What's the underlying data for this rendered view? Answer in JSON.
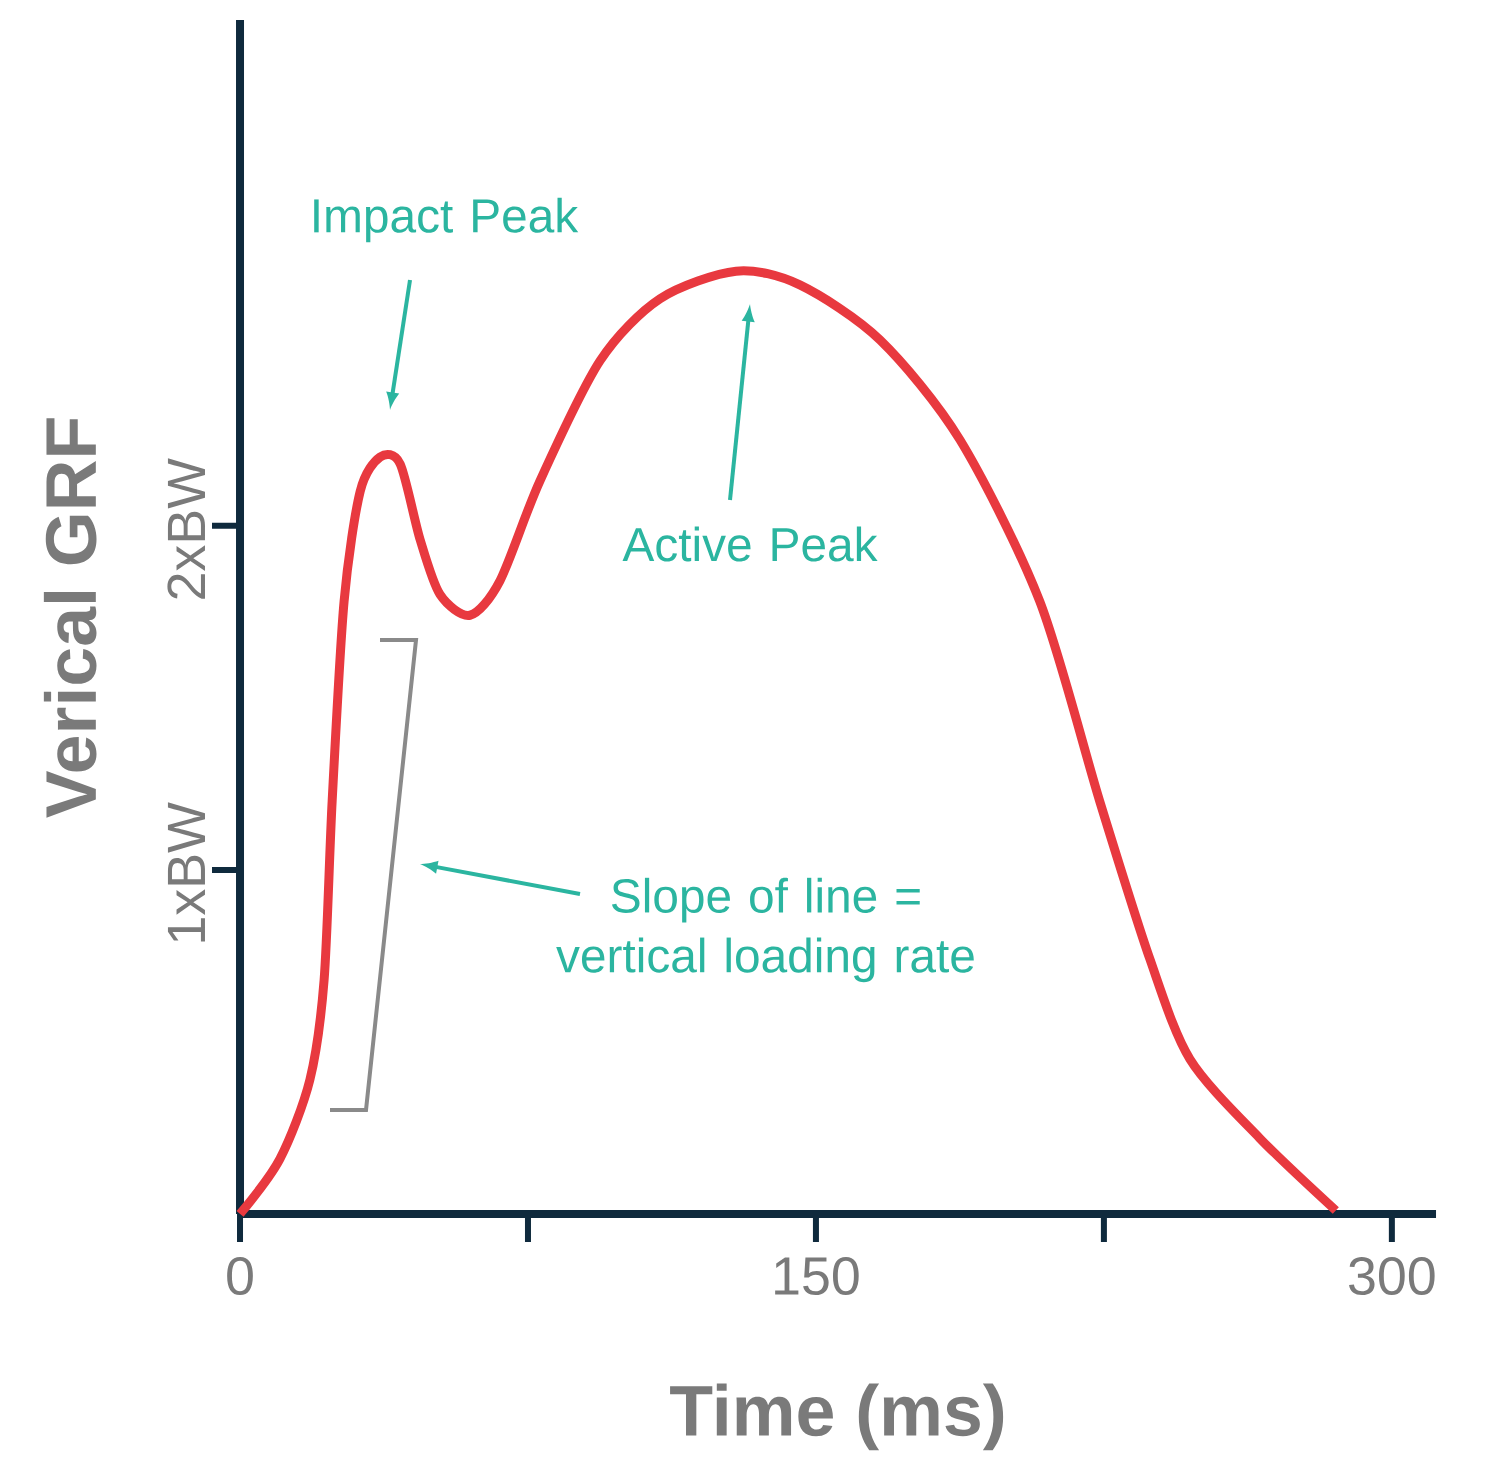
{
  "chart_data": {
    "type": "line",
    "xlabel": "Time (ms)",
    "ylabel": "Verical GRF",
    "x": [
      0,
      10.4,
      18.2,
      21.9,
      24,
      27.1,
      31.3,
      36.5,
      41.7,
      46.9,
      52.1,
      59.9,
      67.7,
      78.1,
      93.8,
      109.4,
      129.2,
      145.8,
      166.7,
      187.5,
      208.3,
      223.9,
      237,
      247.4,
      265.6,
      285.4
    ],
    "series": [
      {
        "color": "#e8393f",
        "values": [
          0,
          0.16,
          0.39,
          0.68,
          1.2,
          1.78,
          2.1,
          2.2,
          2.18,
          1.96,
          1.8,
          1.74,
          1.84,
          2.13,
          2.48,
          2.66,
          2.74,
          2.7,
          2.54,
          2.25,
          1.78,
          1.2,
          0.74,
          0.45,
          0.22,
          0.01
        ]
      }
    ],
    "xlim": [
      0,
      311.5
    ],
    "ylim": [
      0,
      3.47
    ],
    "xticks": [
      0,
      {
        "value": 75,
        "label": null
      },
      150,
      {
        "value": 225,
        "label": null
      },
      300
    ],
    "yticks": [
      {
        "value": 1,
        "label": "1xBW"
      },
      {
        "value": 2,
        "label": "2xBW"
      }
    ],
    "annotations": [
      "Impact Peak",
      "Active Peak",
      "Slope of line = vertical loading rate"
    ],
    "grid": false,
    "marker": "none",
    "line_style": "solid"
  }
}
